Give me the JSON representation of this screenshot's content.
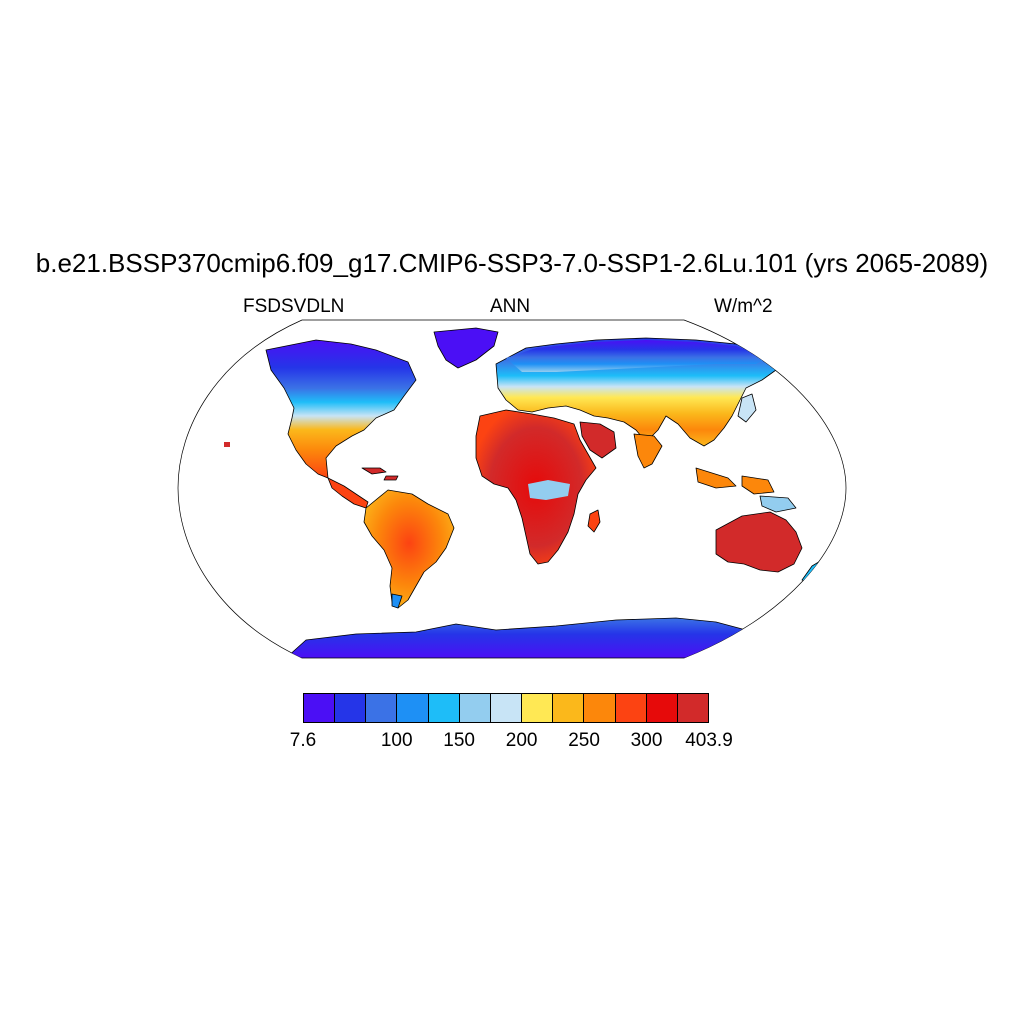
{
  "title": "b.e21.BSSP370cmip6.f09_g17.CMIP6-SSP3-7.0-SSP1-2.6Lu.101 (yrs 2065-2089)",
  "left_label": "FSDSVDLN",
  "center_label": "ANN",
  "right_label": "W/m^2",
  "colorbar": {
    "colors": [
      "#4b0ff5",
      "#2535e8",
      "#3b72e6",
      "#1e90f5",
      "#1ebdf8",
      "#93cdef",
      "#c8e4f6",
      "#ffe854",
      "#fbb81b",
      "#fc870b",
      "#fc4312",
      "#e60a0a",
      "#d22a2a"
    ],
    "labels": [
      {
        "text": "7.6",
        "index": 0
      },
      {
        "text": "100",
        "index": 3
      },
      {
        "text": "150",
        "index": 5
      },
      {
        "text": "200",
        "index": 7
      },
      {
        "text": "250",
        "index": 9
      },
      {
        "text": "300",
        "index": 11
      },
      {
        "text": "403.9",
        "index": 13
      }
    ]
  }
}
